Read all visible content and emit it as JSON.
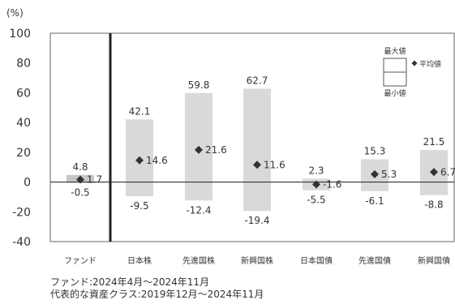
{
  "chart_data": {
    "type": "bar",
    "title": "",
    "y_unit": "(%)",
    "ylim": [
      -40,
      100
    ],
    "yticks": [
      -40,
      -20,
      0,
      20,
      40,
      60,
      80,
      100
    ],
    "grid": false,
    "categories": [
      "ファンド",
      "日本株",
      "先進国株",
      "新興国株",
      "日本国債",
      "先進国債",
      "新興国債"
    ],
    "series": [
      {
        "name": "最大値",
        "values": [
          4.8,
          42.1,
          59.8,
          62.7,
          2.3,
          15.3,
          21.5
        ]
      },
      {
        "name": "平均値",
        "values": [
          1.7,
          14.6,
          21.6,
          11.6,
          -1.6,
          5.3,
          6.7
        ]
      },
      {
        "name": "最小値",
        "values": [
          -0.5,
          -9.5,
          -12.4,
          -19.4,
          -5.5,
          -6.1,
          -8.8
        ]
      }
    ],
    "legend": {
      "position": "top-right",
      "max_label": "最大値",
      "avg_label": "平均値",
      "min_label": "最小値"
    },
    "bar_color": "#d9d9d9",
    "fund_bar_color": "#c8c8c8",
    "marker_color": "#333333"
  },
  "footnotes": [
    "ファンド:2024年4月～2024年11月",
    "代表的な資産クラス:2019年12月～2024年11月"
  ]
}
